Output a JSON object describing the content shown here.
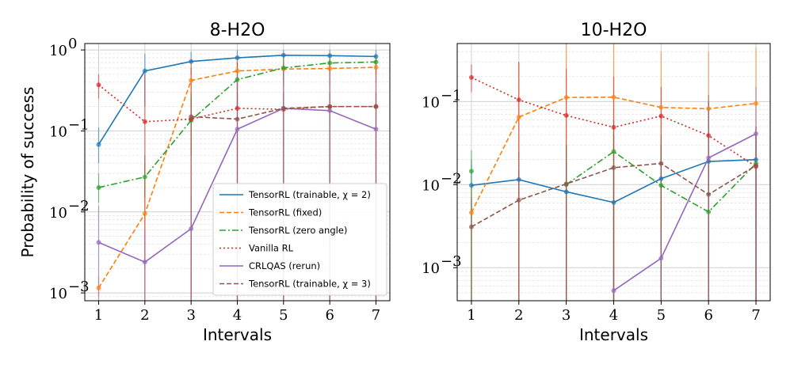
{
  "chart_data": [
    {
      "type": "line",
      "title": "8-H2O",
      "xlabel": "Intervals",
      "ylabel": "Probability of success",
      "yscale": "log",
      "ylim": [
        0.0008,
        1.2
      ],
      "xlim": [
        0.7,
        7.3
      ],
      "x": [
        1,
        2,
        3,
        4,
        5,
        6,
        7
      ],
      "x_tick_labels": [
        "1",
        "2",
        "3",
        "4",
        "5",
        "6",
        "7"
      ],
      "y_ticks": [
        0.001,
        0.01,
        0.1,
        1
      ],
      "y_tick_labels": [
        "10",
        "10",
        "10",
        "10"
      ],
      "y_tick_exponents": [
        "−3",
        "−2",
        "−1",
        "0"
      ],
      "grid": true,
      "legend_position": "lower-right",
      "series": [
        {
          "name": "TensorRL (trainable, χ = 2)",
          "color": "#1f77b4",
          "dash": "solid",
          "marker": "o",
          "values": [
            0.068,
            0.55,
            0.72,
            0.8,
            0.86,
            0.85,
            0.83
          ],
          "err_low": [
            0.04,
            0.2,
            0.5,
            0.65,
            0.7,
            0.7,
            0.7
          ],
          "err_high": [
            0.11,
            0.9,
            0.95,
            1.0,
            1.0,
            1.0,
            1.0
          ]
        },
        {
          "name": "TensorRL (fixed)",
          "color": "#ff7f0e",
          "dash": "dashed",
          "marker": "o",
          "values": [
            0.00115,
            0.0095,
            0.42,
            0.55,
            0.58,
            0.59,
            0.61
          ],
          "err_low": [
            0.0009,
            0.002,
            0.2,
            0.3,
            0.35,
            0.35,
            0.4
          ],
          "err_high": [
            0.0016,
            0.04,
            0.7,
            0.8,
            0.8,
            0.85,
            0.85
          ]
        },
        {
          "name": "TensorRL (zero angle)",
          "color": "#2ca02c",
          "dash": "dashdot",
          "marker": "o",
          "values": [
            0.02,
            0.027,
            0.135,
            0.43,
            0.6,
            0.69,
            0.71
          ],
          "err_low": [
            0.013,
            0.015,
            0.05,
            0.2,
            0.4,
            0.5,
            0.5
          ],
          "err_high": [
            0.03,
            0.05,
            0.3,
            0.7,
            0.85,
            0.9,
            0.9
          ]
        },
        {
          "name": "Vanilla RL",
          "color": "#d62728",
          "dash": "dotted",
          "marker": "o",
          "values": [
            0.37,
            0.13,
            0.14,
            0.19,
            0.185,
            0.2,
            0.2
          ],
          "err_low": [
            0.25,
            0.0008,
            0.0008,
            0.0008,
            0.0008,
            0.0008,
            0.0008
          ],
          "err_high": [
            0.5,
            0.5,
            0.6,
            0.7,
            0.7,
            0.75,
            0.75
          ]
        },
        {
          "name": "CRLQAS (rerun)",
          "color": "#9467bd",
          "dash": "solid",
          "marker": "o",
          "values": [
            0.0042,
            0.0024,
            0.0062,
            0.105,
            0.19,
            0.178,
            0.105
          ],
          "err_low": [
            0.0008,
            0.0008,
            0.0008,
            0.0008,
            0.0008,
            0.0008,
            0.0008
          ],
          "err_high": [
            0.012,
            0.006,
            0.016,
            0.5,
            0.6,
            0.6,
            0.5
          ]
        },
        {
          "name": "TensorRL (trainable, χ = 3)",
          "color": "#8c564b",
          "dash": "dashed",
          "marker": "o",
          "values": [
            null,
            null,
            0.15,
            0.14,
            0.19,
            0.2,
            0.2
          ],
          "err_low": [
            null,
            null,
            0.0008,
            0.0008,
            0.0008,
            0.0008,
            0.0008
          ],
          "err_high": [
            null,
            null,
            0.26,
            0.3,
            0.3,
            0.3,
            0.3
          ]
        }
      ]
    },
    {
      "type": "line",
      "title": "10-H2O",
      "xlabel": "Intervals",
      "ylabel": "",
      "yscale": "log",
      "ylim": [
        0.0004,
        0.5
      ],
      "xlim": [
        0.7,
        7.3
      ],
      "x": [
        1,
        2,
        3,
        4,
        5,
        6,
        7
      ],
      "x_tick_labels": [
        "1",
        "2",
        "3",
        "4",
        "5",
        "6",
        "7"
      ],
      "y_ticks": [
        0.001,
        0.01,
        0.1
      ],
      "y_tick_labels": [
        "10",
        "10",
        "10"
      ],
      "y_tick_exponents": [
        "−3",
        "−2",
        "−1"
      ],
      "grid": true,
      "series": [
        {
          "name": "TensorRL (trainable, χ = 2)",
          "color": "#1f77b4",
          "dash": "solid",
          "marker": "o",
          "values": [
            0.0098,
            0.0115,
            0.0082,
            0.0061,
            0.0118,
            0.019,
            0.02
          ],
          "err_low": [
            0.0004,
            0.0004,
            0.0004,
            0.0004,
            0.0004,
            0.0004,
            0.0004
          ],
          "err_high": [
            0.02,
            0.025,
            0.02,
            0.015,
            0.03,
            0.05,
            0.05
          ]
        },
        {
          "name": "TensorRL (fixed)",
          "color": "#ff7f0e",
          "dash": "dashed",
          "marker": "o",
          "values": [
            0.0046,
            0.065,
            0.112,
            0.113,
            0.085,
            0.082,
            0.095
          ],
          "err_low": [
            0.0004,
            0.0004,
            0.0004,
            0.0004,
            0.0004,
            0.0004,
            0.0004
          ],
          "err_high": [
            0.01,
            0.3,
            0.5,
            0.5,
            0.4,
            0.4,
            0.45
          ]
        },
        {
          "name": "TensorRL (zero angle)",
          "color": "#2ca02c",
          "dash": "dashdot",
          "marker": "o",
          "values": [
            0.0145,
            null,
            0.01,
            0.025,
            0.0098,
            0.0047,
            0.018
          ],
          "err_low": [
            0.0004,
            null,
            0.0004,
            0.0004,
            0.0004,
            0.0004,
            0.0004
          ],
          "err_high": [
            0.026,
            null,
            0.03,
            0.06,
            0.03,
            0.015,
            0.04
          ]
        },
        {
          "name": "Vanilla RL",
          "color": "#d62728",
          "dash": "dotted",
          "marker": "o",
          "values": [
            0.195,
            0.105,
            0.068,
            0.049,
            0.067,
            0.039,
            0.0165
          ],
          "err_low": [
            0.13,
            0.0004,
            0.0004,
            0.0004,
            0.0004,
            0.0004,
            0.0004
          ],
          "err_high": [
            0.28,
            0.3,
            0.25,
            0.2,
            0.15,
            0.1,
            0.05
          ]
        },
        {
          "name": "CRLQAS (rerun)",
          "color": "#9467bd",
          "dash": "solid",
          "marker": "o",
          "values": [
            null,
            null,
            null,
            0.00053,
            0.0013,
            0.021,
            0.041
          ],
          "err_low": [
            null,
            null,
            null,
            0.0004,
            0.0004,
            0.0004,
            0.0004
          ],
          "err_high": [
            null,
            null,
            null,
            0.001,
            0.003,
            0.1,
            0.15
          ]
        },
        {
          "name": "TensorRL (trainable, χ = 3)",
          "color": "#8c564b",
          "dash": "dashed",
          "marker": "o",
          "values": [
            0.0031,
            0.0065,
            0.0102,
            0.016,
            0.018,
            0.0076,
            0.017
          ],
          "err_low": [
            0.0004,
            0.0004,
            0.0004,
            0.0004,
            0.0004,
            0.0004,
            0.0004
          ],
          "err_high": [
            0.007,
            0.015,
            0.03,
            0.04,
            0.04,
            0.12,
            0.04
          ]
        }
      ]
    }
  ]
}
